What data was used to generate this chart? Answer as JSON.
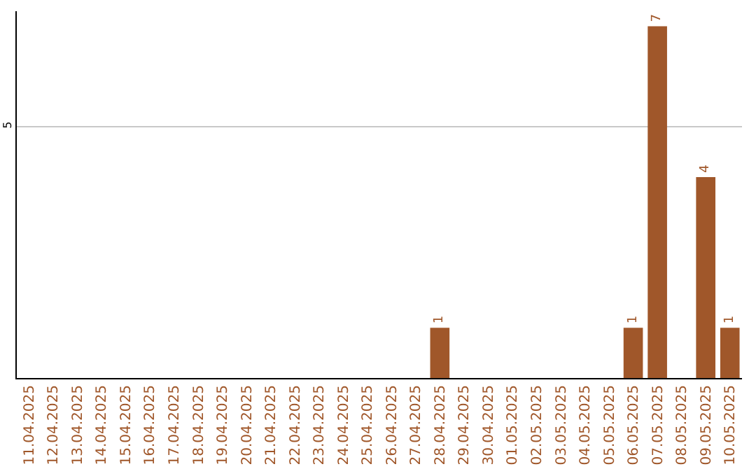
{
  "chart_data": {
    "type": "bar",
    "categories": [
      "11.04.2025",
      "12.04.2025",
      "13.04.2025",
      "14.04.2025",
      "15.04.2025",
      "16.04.2025",
      "17.04.2025",
      "18.04.2025",
      "19.04.2025",
      "20.04.2025",
      "21.04.2025",
      "22.04.2025",
      "23.04.2025",
      "24.04.2025",
      "25.04.2025",
      "26.04.2025",
      "27.04.2025",
      "28.04.2025",
      "29.04.2025",
      "30.04.2025",
      "01.05.2025",
      "02.05.2025",
      "03.05.2025",
      "04.05.2025",
      "05.05.2025",
      "06.05.2025",
      "07.05.2025",
      "08.05.2025",
      "09.05.2025",
      "10.05.2025"
    ],
    "values": [
      null,
      null,
      null,
      null,
      null,
      null,
      null,
      null,
      null,
      null,
      null,
      null,
      null,
      null,
      null,
      null,
      null,
      1,
      null,
      null,
      null,
      null,
      null,
      null,
      null,
      1,
      7,
      null,
      4,
      1
    ],
    "color": "#a0572a",
    "ylim": [
      0,
      7.3
    ],
    "yticks": [
      5
    ],
    "grid": "y",
    "data_labels": true,
    "legend": false
  }
}
